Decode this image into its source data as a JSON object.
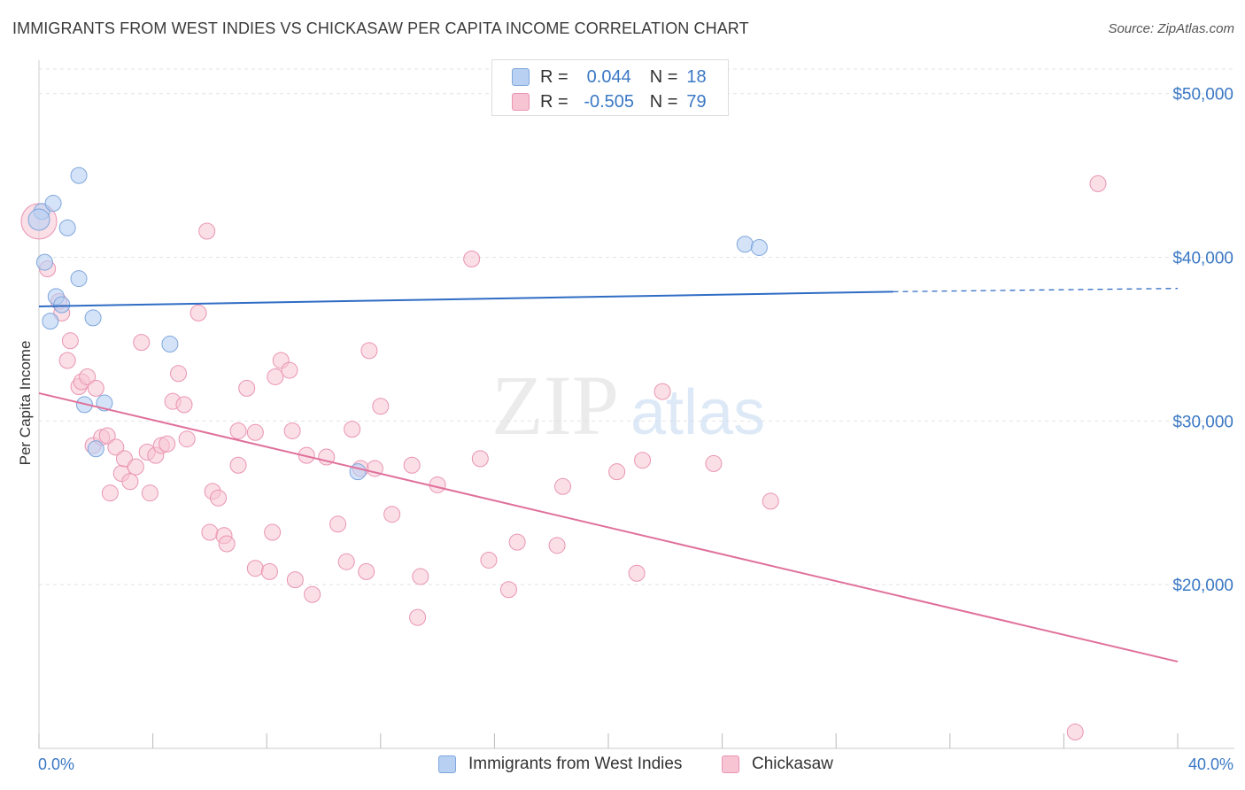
{
  "title": "IMMIGRANTS FROM WEST INDIES VS CHICKASAW PER CAPITA INCOME CORRELATION CHART",
  "source": "Source: ZipAtlas.com",
  "watermark": {
    "zip": "ZIP",
    "atlas": "atlas"
  },
  "legend": {
    "r_label": "R =",
    "n_label": "N =",
    "series": [
      {
        "r": "0.044",
        "n": "18"
      },
      {
        "r": "-0.505",
        "n": "79"
      }
    ]
  },
  "bottom_legend": [
    "Immigrants from West Indies",
    "Chickasaw"
  ],
  "colors": {
    "blue_fill": "#b8d1f3",
    "blue_stroke": "#7ea6dc",
    "blue_line": "#2f6cc4",
    "pink_fill": "#f7c4d3",
    "pink_stroke": "#e994b2",
    "pink_line": "#e0709a",
    "tick_text": "#3a78c4",
    "grid": "#e3e3e3"
  },
  "chart_data": {
    "type": "scatter",
    "title": "IMMIGRANTS FROM WEST INDIES VS CHICKASAW PER CAPITA INCOME CORRELATION CHART",
    "xlabel": "",
    "ylabel": "Per Capita Income",
    "xlim": [
      0,
      40
    ],
    "ylim": [
      10000,
      51500
    ],
    "x_tick_labels": [
      "0.0%",
      "40.0%"
    ],
    "y_ticks": [
      20000,
      30000,
      40000,
      50000
    ],
    "y_tick_labels": [
      "$20,000",
      "$30,000",
      "$40,000",
      "$50,000"
    ],
    "grid": true,
    "legend_position": "top-center",
    "series": [
      {
        "name": "Immigrants from West Indies",
        "r": 0.044,
        "n": 18,
        "trend": {
          "x0": 0,
          "y0": 37000,
          "x1": 30,
          "y1": 37900,
          "dashed_to_x": 40,
          "dashed_to_y": 38100
        },
        "points": [
          [
            0.1,
            42800
          ],
          [
            0.5,
            43300
          ],
          [
            1.4,
            45000
          ],
          [
            1.0,
            41800
          ],
          [
            0.2,
            39700
          ],
          [
            1.4,
            38700
          ],
          [
            0.6,
            37600
          ],
          [
            0.8,
            37100
          ],
          [
            0.4,
            36100
          ],
          [
            1.9,
            36300
          ],
          [
            4.6,
            34700
          ],
          [
            1.6,
            31000
          ],
          [
            2.3,
            31100
          ],
          [
            2.0,
            28300
          ],
          [
            11.2,
            26900
          ],
          [
            24.8,
            40800
          ],
          [
            25.3,
            40600
          ],
          [
            0.0,
            42300
          ]
        ]
      },
      {
        "name": "Chickasaw",
        "r": -0.505,
        "n": 79,
        "trend": {
          "x0": 0,
          "y0": 31700,
          "x1": 40,
          "y1": 15300
        },
        "points": [
          [
            0.0,
            42200
          ],
          [
            0.3,
            39300
          ],
          [
            0.7,
            37300
          ],
          [
            0.8,
            36600
          ],
          [
            1.0,
            33700
          ],
          [
            1.1,
            34900
          ],
          [
            1.4,
            32100
          ],
          [
            1.5,
            32400
          ],
          [
            1.7,
            32700
          ],
          [
            1.9,
            28500
          ],
          [
            2.0,
            32000
          ],
          [
            2.2,
            29000
          ],
          [
            2.4,
            29100
          ],
          [
            2.5,
            25600
          ],
          [
            2.7,
            28400
          ],
          [
            2.9,
            26800
          ],
          [
            3.0,
            27700
          ],
          [
            3.2,
            26300
          ],
          [
            3.4,
            27200
          ],
          [
            3.6,
            34800
          ],
          [
            3.8,
            28100
          ],
          [
            3.9,
            25600
          ],
          [
            4.1,
            27900
          ],
          [
            4.3,
            28500
          ],
          [
            4.5,
            28600
          ],
          [
            4.7,
            31200
          ],
          [
            4.9,
            32900
          ],
          [
            5.1,
            31000
          ],
          [
            5.2,
            28900
          ],
          [
            5.6,
            36600
          ],
          [
            5.9,
            41600
          ],
          [
            6.0,
            23200
          ],
          [
            6.1,
            25700
          ],
          [
            6.3,
            25300
          ],
          [
            6.5,
            23000
          ],
          [
            6.6,
            22500
          ],
          [
            7.0,
            27300
          ],
          [
            7.0,
            29400
          ],
          [
            7.3,
            32000
          ],
          [
            7.6,
            29300
          ],
          [
            7.6,
            21000
          ],
          [
            8.1,
            20800
          ],
          [
            8.2,
            23200
          ],
          [
            8.3,
            32700
          ],
          [
            8.5,
            33700
          ],
          [
            8.8,
            33100
          ],
          [
            8.9,
            29400
          ],
          [
            9.0,
            20300
          ],
          [
            9.4,
            27900
          ],
          [
            9.6,
            19400
          ],
          [
            10.1,
            27800
          ],
          [
            10.5,
            23700
          ],
          [
            10.8,
            21400
          ],
          [
            11.0,
            29500
          ],
          [
            11.3,
            27100
          ],
          [
            11.5,
            20800
          ],
          [
            11.6,
            34300
          ],
          [
            11.8,
            27100
          ],
          [
            12.0,
            30900
          ],
          [
            12.4,
            24300
          ],
          [
            13.1,
            27300
          ],
          [
            13.3,
            18000
          ],
          [
            13.4,
            20500
          ],
          [
            14.0,
            26100
          ],
          [
            15.2,
            39900
          ],
          [
            15.5,
            27700
          ],
          [
            15.8,
            21500
          ],
          [
            16.5,
            19700
          ],
          [
            16.8,
            22600
          ],
          [
            18.2,
            22400
          ],
          [
            18.4,
            26000
          ],
          [
            20.3,
            26900
          ],
          [
            21.0,
            20700
          ],
          [
            21.2,
            27600
          ],
          [
            21.9,
            31800
          ],
          [
            23.7,
            27400
          ],
          [
            25.7,
            25100
          ],
          [
            36.4,
            11000
          ],
          [
            37.2,
            44500
          ]
        ]
      }
    ]
  }
}
